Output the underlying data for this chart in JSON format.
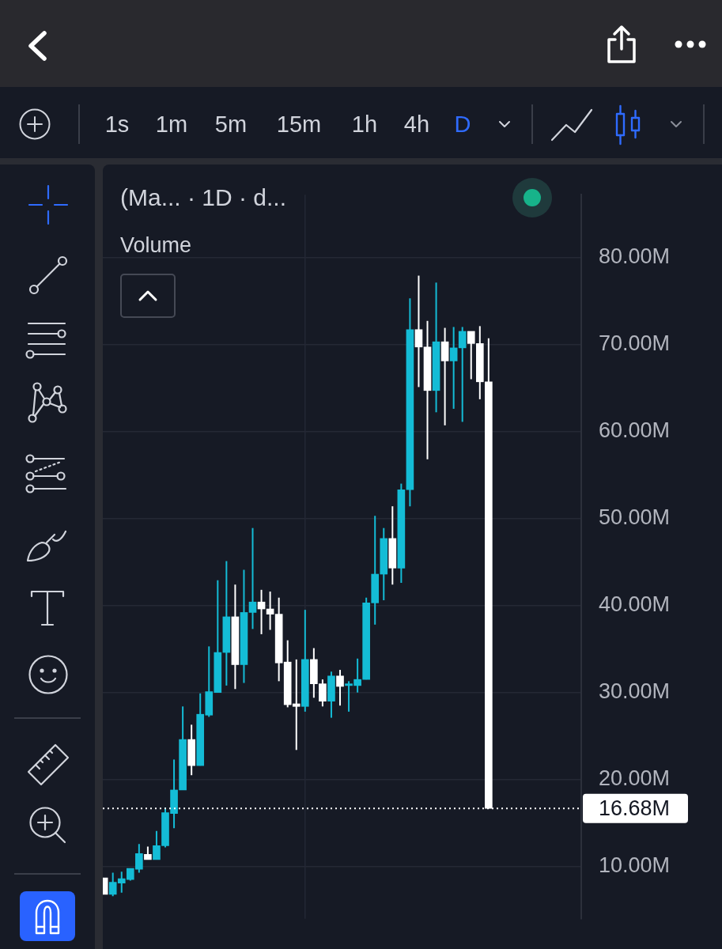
{
  "chart_data": {
    "type": "candlestick",
    "title": "(Ma... · 1D · d...",
    "annotations": [
      "Volume",
      "1s",
      "1m",
      "5m",
      "15m",
      "1h",
      "4h",
      "D"
    ],
    "categories": [
      null,
      null,
      null,
      null,
      null,
      null,
      null,
      null,
      null,
      null,
      null,
      null,
      null,
      null,
      null,
      null,
      null,
      null,
      null,
      null,
      null,
      null,
      null,
      null,
      null,
      null,
      null,
      null,
      null,
      null,
      null,
      null,
      null,
      null,
      null,
      null,
      null,
      null,
      null,
      null,
      null,
      null,
      null,
      null,
      null
    ],
    "ohlc": [
      [
        8.7,
        8.7,
        6.8,
        6.8
      ],
      [
        6.8,
        9.3,
        6.6,
        8.2
      ],
      [
        8.1,
        9.4,
        7.0,
        8.6
      ],
      [
        8.5,
        9.8,
        8.4,
        9.8
      ],
      [
        9.7,
        12.6,
        9.3,
        11.5
      ],
      [
        11.4,
        12.3,
        10.8,
        10.8
      ],
      [
        10.8,
        14.1,
        10.8,
        12.4
      ],
      [
        12.4,
        16.8,
        12.2,
        16.2
      ],
      [
        16.1,
        22.3,
        14.4,
        18.8
      ],
      [
        18.8,
        28.4,
        18.8,
        24.6
      ],
      [
        24.6,
        26.3,
        20.5,
        21.6
      ],
      [
        21.6,
        29.9,
        21.6,
        27.5
      ],
      [
        27.4,
        35.3,
        27.2,
        30.1
      ],
      [
        30.0,
        42.9,
        30.0,
        34.6
      ],
      [
        34.6,
        45.1,
        30.8,
        38.7
      ],
      [
        38.7,
        42.4,
        30.4,
        33.2
      ],
      [
        33.2,
        44.1,
        31.1,
        39.2
      ],
      [
        39.2,
        48.9,
        37.3,
        40.4
      ],
      [
        40.4,
        41.8,
        36.7,
        39.6
      ],
      [
        39.6,
        41.6,
        37.2,
        39.0
      ],
      [
        39.0,
        40.9,
        31.3,
        33.4
      ],
      [
        33.5,
        36.0,
        28.3,
        28.6
      ],
      [
        28.7,
        33.8,
        23.4,
        28.4
      ],
      [
        28.4,
        39.5,
        27.8,
        33.8
      ],
      [
        33.8,
        35.1,
        29.4,
        31.0
      ],
      [
        31.0,
        31.5,
        28.4,
        29.0
      ],
      [
        29.0,
        32.4,
        27.1,
        31.9
      ],
      [
        31.9,
        32.6,
        28.5,
        30.7
      ],
      [
        30.8,
        31.3,
        27.8,
        31.0
      ],
      [
        30.8,
        33.9,
        30.0,
        31.5
      ],
      [
        31.5,
        40.9,
        31.5,
        40.3
      ],
      [
        40.3,
        50.3,
        37.8,
        43.6
      ],
      [
        43.6,
        48.9,
        40.6,
        47.7
      ],
      [
        47.7,
        51.4,
        42.4,
        44.3
      ],
      [
        44.3,
        54.0,
        42.6,
        53.3
      ],
      [
        53.3,
        75.3,
        51.4,
        71.7
      ],
      [
        71.7,
        77.9,
        65.1,
        69.7
      ],
      [
        69.7,
        72.7,
        56.8,
        64.7
      ],
      [
        64.7,
        77.1,
        62.2,
        70.3
      ],
      [
        70.3,
        71.9,
        60.7,
        68.1
      ],
      [
        68.1,
        72.0,
        62.6,
        69.6
      ],
      [
        69.6,
        72.0,
        61.1,
        71.5
      ],
      [
        71.5,
        71.5,
        66.0,
        70.1
      ],
      [
        70.1,
        72.1,
        63.7,
        65.7
      ],
      [
        65.7,
        70.7,
        16.68,
        16.68
      ]
    ],
    "colors": [
      "#ffffff",
      "#14bcd6",
      "#14bcd6",
      "#14bcd6",
      "#14bcd6",
      "#ffffff",
      "#14bcd6",
      "#14bcd6",
      "#14bcd6",
      "#14bcd6",
      "#ffffff",
      "#14bcd6",
      "#14bcd6",
      "#14bcd6",
      "#14bcd6",
      "#ffffff",
      "#14bcd6",
      "#14bcd6",
      "#ffffff",
      "#ffffff",
      "#ffffff",
      "#ffffff",
      "#ffffff",
      "#14bcd6",
      "#ffffff",
      "#ffffff",
      "#14bcd6",
      "#ffffff",
      "#14bcd6",
      "#14bcd6",
      "#14bcd6",
      "#14bcd6",
      "#14bcd6",
      "#ffffff",
      "#14bcd6",
      "#14bcd6",
      "#ffffff",
      "#ffffff",
      "#14bcd6",
      "#ffffff",
      "#14bcd6",
      "#14bcd6",
      "#ffffff",
      "#ffffff",
      "#ffffff"
    ],
    "ylim": [
      4.0,
      87.2
    ],
    "yticks": [
      {
        "value": 10,
        "label": "10.00M"
      },
      {
        "value": 20,
        "label": "20.00M"
      },
      {
        "value": 30,
        "label": "30.00M"
      },
      {
        "value": 40,
        "label": "40.00M"
      },
      {
        "value": 50,
        "label": "50.00M"
      },
      {
        "value": 60,
        "label": "60.00M"
      },
      {
        "value": 70,
        "label": "70.00M"
      },
      {
        "value": 80,
        "label": "80.00M"
      }
    ],
    "grid": "y",
    "ref_lines": [
      {
        "axis": "y",
        "value": 16.68,
        "label": "16.68M",
        "color": "#ffffff",
        "line_style": "dotted"
      }
    ]
  }
}
